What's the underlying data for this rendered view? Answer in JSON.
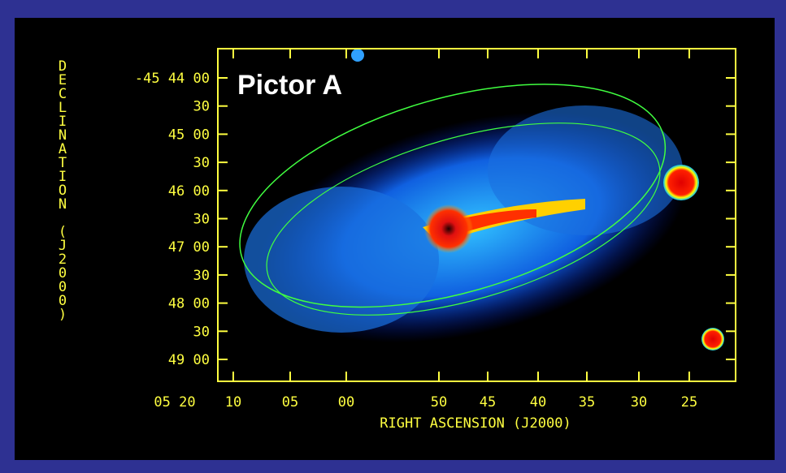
{
  "figure": {
    "label": "Pictor A",
    "y_axis": {
      "title": "DECLINATION (J2000)",
      "ticks": [
        "-45 44 00",
        "30",
        "45 00",
        "30",
        "46 00",
        "30",
        "47 00",
        "30",
        "48 00",
        "30",
        "49 00"
      ]
    },
    "x_axis": {
      "title": "RIGHT ASCENSION (J2000)",
      "ticks": [
        "05 20",
        "10",
        "05",
        "00",
        "50",
        "45",
        "40",
        "35",
        "30",
        "25"
      ]
    }
  }
}
